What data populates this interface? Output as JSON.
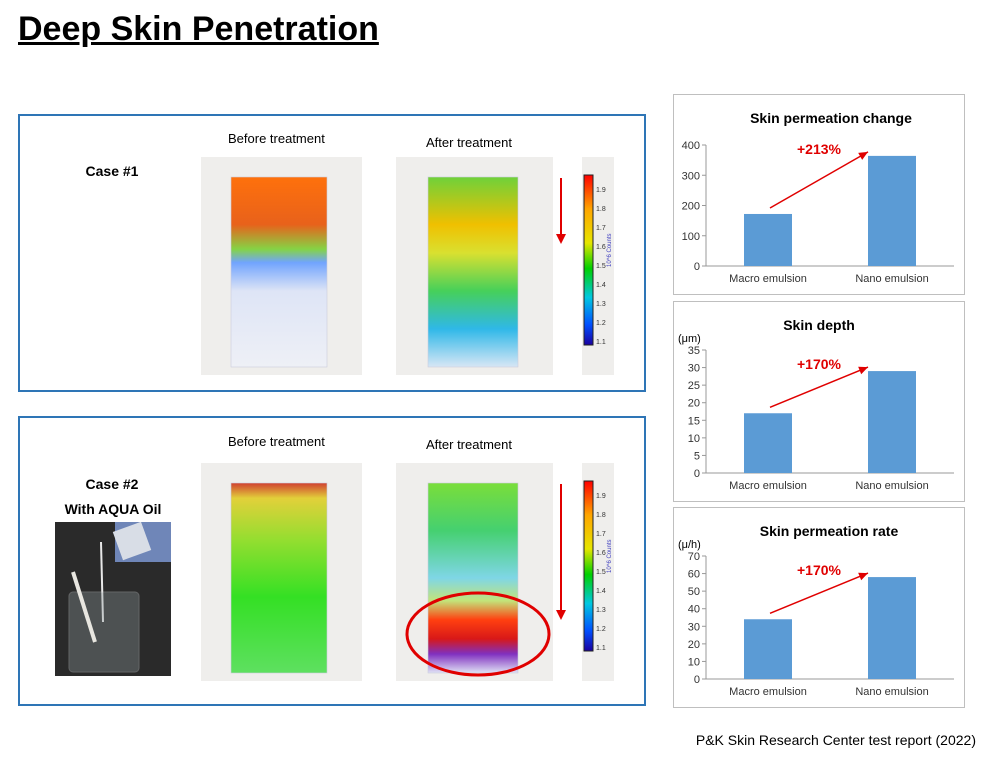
{
  "title": "Deep Skin Penetration",
  "case1": {
    "label": "Case #1",
    "before": "Before treatment",
    "after": "After treatment"
  },
  "case2": {
    "label": "Case #2",
    "sublabel": "With AQUA Oil",
    "before": "Before treatment",
    "after": "After treatment"
  },
  "colorbar": {
    "ticks": [
      "1.9",
      "1.8",
      "1.7",
      "1.6",
      "1.5",
      "1.4",
      "1.3",
      "1.2",
      "1.1"
    ],
    "label": "10^6 Counts"
  },
  "footer": "P&K Skin Research Center test report (2022)",
  "chart_data": [
    {
      "type": "bar",
      "title": "Skin permeation change",
      "unit": "",
      "categories": [
        "Macro emulsion",
        "Nano emulsion"
      ],
      "values": [
        172,
        364
      ],
      "yticks": [
        0,
        100,
        200,
        300,
        400
      ],
      "ylim": [
        0,
        400
      ],
      "annotation": "+213%",
      "color": "#5b9bd5"
    },
    {
      "type": "bar",
      "title": "Skin depth",
      "unit": "(μm)",
      "categories": [
        "Macro emulsion",
        "Nano emulsion"
      ],
      "values": [
        17,
        29
      ],
      "yticks": [
        0,
        5,
        10,
        15,
        20,
        25,
        30,
        35
      ],
      "ylim": [
        0,
        35
      ],
      "annotation": "+170%",
      "color": "#5b9bd5"
    },
    {
      "type": "bar",
      "title": "Skin permeation rate",
      "unit": "(μ/h)",
      "categories": [
        "Macro emulsion",
        "Nano emulsion"
      ],
      "values": [
        34,
        58
      ],
      "yticks": [
        0,
        10,
        20,
        30,
        40,
        50,
        60,
        70
      ],
      "ylim": [
        0,
        70
      ],
      "annotation": "+170%",
      "color": "#5b9bd5"
    }
  ]
}
